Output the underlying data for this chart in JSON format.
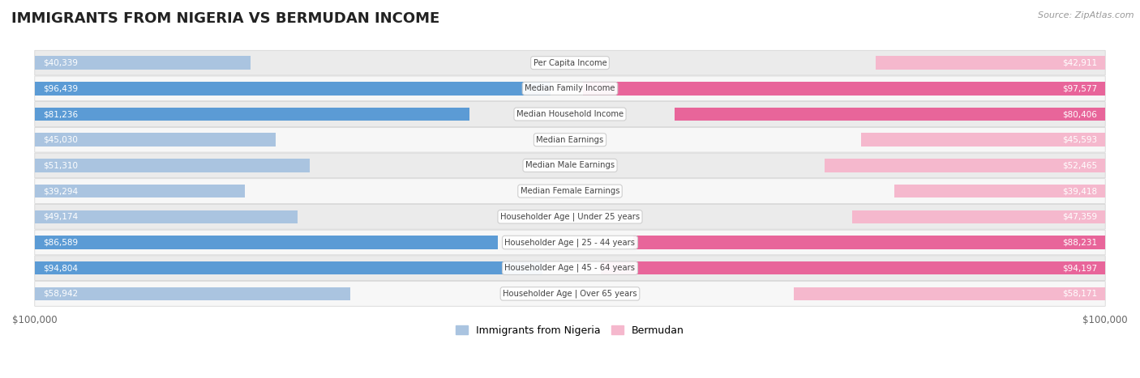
{
  "title": "IMMIGRANTS FROM NIGERIA VS BERMUDAN INCOME",
  "source": "Source: ZipAtlas.com",
  "categories": [
    "Per Capita Income",
    "Median Family Income",
    "Median Household Income",
    "Median Earnings",
    "Median Male Earnings",
    "Median Female Earnings",
    "Householder Age | Under 25 years",
    "Householder Age | 25 - 44 years",
    "Householder Age | 45 - 64 years",
    "Householder Age | Over 65 years"
  ],
  "nigeria_values": [
    40339,
    96439,
    81236,
    45030,
    51310,
    39294,
    49174,
    86589,
    94804,
    58942
  ],
  "bermudan_values": [
    42911,
    97577,
    80406,
    45593,
    52465,
    39418,
    47359,
    88231,
    94197,
    58171
  ],
  "nigeria_labels": [
    "$40,339",
    "$96,439",
    "$81,236",
    "$45,030",
    "$51,310",
    "$39,294",
    "$49,174",
    "$86,589",
    "$94,804",
    "$58,942"
  ],
  "bermudan_labels": [
    "$42,911",
    "$97,577",
    "$80,406",
    "$45,593",
    "$52,465",
    "$39,418",
    "$47,359",
    "$88,231",
    "$94,197",
    "$58,171"
  ],
  "max_value": 100000,
  "nigeria_color_light": "#aac4e0",
  "nigeria_color_dark": "#5b9bd5",
  "bermudan_color_light": "#f5b8cd",
  "bermudan_color_dark": "#e8659a",
  "inner_label_color": "#ffffff",
  "outer_label_color": "#555555",
  "row_bg_alt": "#ebebeb",
  "row_bg_main": "#f7f7f7",
  "bar_height": 0.52,
  "dark_threshold": 0.6,
  "inner_threshold": 0.35,
  "background_color": "#ffffff",
  "cat_box_color": "#ffffff",
  "cat_box_edge": "#cccccc",
  "cat_text_color": "#444444",
  "title_color": "#222222",
  "source_color": "#999999",
  "axis_label_color": "#666666"
}
